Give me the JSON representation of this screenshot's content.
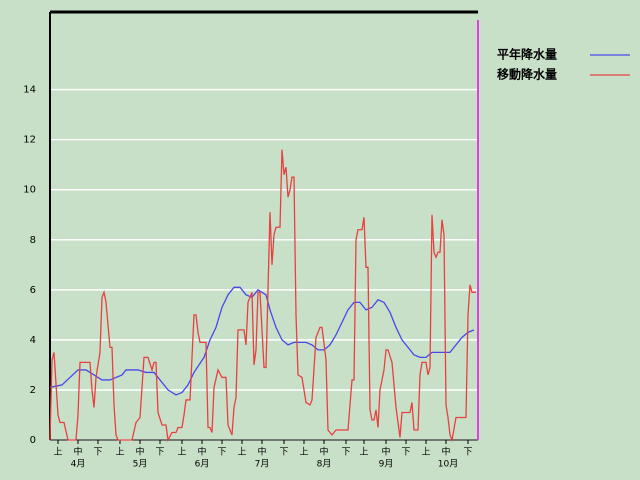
{
  "chart_data": {
    "type": "line",
    "xlim": [
      0,
      214
    ],
    "ylim": [
      0,
      17.1
    ],
    "yticks": [
      0,
      2,
      4,
      6,
      8,
      10,
      12,
      14
    ],
    "grid": true,
    "legend": "upper right",
    "xticks": [
      {
        "value": 4,
        "label": "上"
      },
      {
        "value": 14,
        "label": "中"
      },
      {
        "value": 24,
        "label": "下"
      },
      {
        "value": 35,
        "label": "上"
      },
      {
        "value": 45,
        "label": "中"
      },
      {
        "value": 55,
        "label": "下"
      },
      {
        "value": 66,
        "label": "上"
      },
      {
        "value": 76,
        "label": "中"
      },
      {
        "value": 86,
        "label": "下"
      },
      {
        "value": 96,
        "label": "上"
      },
      {
        "value": 106,
        "label": "中"
      },
      {
        "value": 117,
        "label": "下"
      },
      {
        "value": 127,
        "label": "上"
      },
      {
        "value": 137,
        "label": "中"
      },
      {
        "value": 148,
        "label": "下"
      },
      {
        "value": 157,
        "label": "上"
      },
      {
        "value": 168,
        "label": "中"
      },
      {
        "value": 178,
        "label": "下"
      },
      {
        "value": 188,
        "label": "上"
      },
      {
        "value": 198,
        "label": "中"
      },
      {
        "value": 209,
        "label": "下"
      }
    ],
    "month_labels": [
      {
        "value": 14,
        "label": "4月"
      },
      {
        "value": 45,
        "label": "5月"
      },
      {
        "value": 76,
        "label": "6月"
      },
      {
        "value": 106,
        "label": "7月"
      },
      {
        "value": 137,
        "label": "8月"
      },
      {
        "value": 168,
        "label": "9月"
      },
      {
        "value": 199,
        "label": "10月"
      }
    ],
    "series": [
      {
        "name": "平年降水量",
        "color": "#4848e8",
        "x": [
          0,
          6,
          10,
          14,
          18,
          22,
          26,
          30,
          36,
          38,
          44,
          48,
          52,
          55,
          59,
          63,
          66,
          69,
          72,
          77,
          80,
          83,
          86,
          89,
          92,
          95,
          98,
          101,
          104,
          108,
          110,
          113,
          116,
          119,
          122,
          128,
          131,
          134,
          137,
          140,
          143,
          146,
          149,
          152,
          155,
          158,
          161,
          164,
          167,
          170,
          173,
          176,
          179,
          182,
          185,
          188,
          191,
          194,
          200,
          203,
          206,
          209,
          212
        ],
        "values": [
          2.1,
          2.2,
          2.5,
          2.8,
          2.8,
          2.6,
          2.4,
          2.4,
          2.6,
          2.8,
          2.8,
          2.7,
          2.7,
          2.4,
          2.0,
          1.8,
          1.9,
          2.2,
          2.7,
          3.3,
          4.0,
          4.5,
          5.3,
          5.8,
          6.1,
          6.1,
          5.8,
          5.7,
          6.0,
          5.8,
          5.2,
          4.5,
          4.0,
          3.8,
          3.9,
          3.9,
          3.8,
          3.6,
          3.6,
          3.8,
          4.2,
          4.7,
          5.2,
          5.5,
          5.5,
          5.2,
          5.3,
          5.6,
          5.5,
          5.1,
          4.5,
          4.0,
          3.7,
          3.4,
          3.3,
          3.3,
          3.5,
          3.5,
          3.5,
          3.8,
          4.1,
          4.3,
          4.4
        ]
      },
      {
        "name": "移動降水量",
        "color": "#e84040",
        "x": [
          0,
          1,
          2,
          4,
          5,
          7,
          9,
          13,
          14,
          15,
          20,
          21,
          22,
          23,
          25,
          26,
          27,
          28,
          30,
          31,
          32,
          33,
          34,
          41,
          43,
          45,
          47,
          49,
          51,
          52,
          53,
          54,
          56,
          58,
          59,
          61,
          63,
          64,
          66,
          67,
          68,
          70,
          72,
          73,
          74,
          75,
          78,
          79,
          80,
          81,
          82,
          84,
          86,
          88,
          89,
          91,
          92,
          93,
          94,
          97,
          98,
          99,
          101,
          102,
          103,
          104,
          105,
          107,
          108,
          110,
          111,
          112,
          113,
          115,
          116,
          117,
          118,
          119,
          120,
          121,
          122,
          123,
          124,
          126,
          128,
          130,
          131,
          133,
          135,
          136,
          138,
          139,
          141,
          143,
          149,
          151,
          152,
          153,
          154,
          156,
          157,
          158,
          159,
          160,
          161,
          162,
          163,
          164,
          165,
          167,
          168,
          169,
          171,
          173,
          175,
          176,
          180,
          181,
          182,
          184,
          185,
          186,
          188,
          189,
          190,
          191,
          192,
          193,
          194,
          195,
          196,
          197,
          198,
          199,
          200,
          201,
          203,
          208,
          209,
          210,
          211,
          213
        ],
        "values": [
          0,
          3.2,
          3.5,
          1.0,
          0.7,
          0.7,
          0,
          0,
          1,
          3.1,
          3.1,
          2.0,
          1.3,
          2.5,
          3.5,
          5.7,
          5.9,
          5.5,
          3.7,
          3.7,
          1.4,
          0.2,
          0,
          0,
          0.7,
          0.9,
          3.3,
          3.3,
          2.8,
          3.1,
          3.1,
          1.1,
          0.6,
          0.6,
          0,
          0.3,
          0.3,
          0.5,
          0.5,
          1.0,
          1.6,
          1.6,
          5.0,
          5.0,
          4.3,
          3.9,
          3.9,
          0.5,
          0.5,
          0.3,
          2.1,
          2.8,
          2.5,
          2.5,
          0.6,
          0.2,
          1.3,
          1.7,
          4.4,
          4.4,
          3.8,
          5.5,
          5.9,
          3.0,
          3.6,
          5.9,
          5.9,
          2.9,
          2.9,
          9.1,
          7.0,
          8.2,
          8.5,
          8.5,
          11.6,
          10.6,
          10.9,
          9.7,
          10.0,
          10.5,
          10.5,
          5.0,
          2.6,
          2.5,
          1.5,
          1.4,
          1.6,
          4.1,
          4.5,
          4.5,
          3.2,
          0.4,
          0.2,
          0.4,
          0.4,
          2.4,
          2.4,
          8.0,
          8.4,
          8.4,
          8.9,
          6.9,
          6.9,
          1.2,
          0.8,
          0.8,
          1.2,
          0.5,
          2.0,
          2.8,
          3.6,
          3.6,
          3.1,
          1.3,
          0.1,
          1.1,
          1.1,
          1.5,
          0.4,
          0.4,
          2.6,
          3.1,
          3.1,
          2.6,
          2.9,
          9.0,
          7.5,
          7.3,
          7.5,
          7.5,
          8.8,
          8.2,
          1.4,
          0.9,
          0.2,
          0,
          0.9,
          0.9,
          5.0,
          6.2,
          5.9,
          5.9
        ]
      }
    ]
  }
}
